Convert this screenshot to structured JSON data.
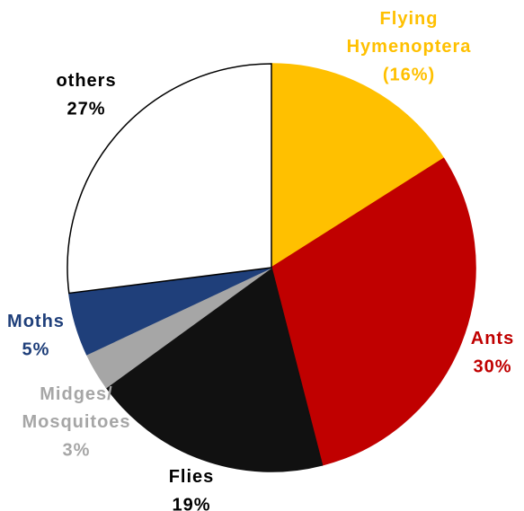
{
  "chart_data": {
    "type": "pie",
    "categories": [
      "Flying Hymenoptera",
      "Ants",
      "Flies",
      "Midges/ Mosquitoes",
      "Moths",
      "others"
    ],
    "values": [
      16,
      30,
      19,
      3,
      5,
      27
    ],
    "value_labels": [
      "(16%)",
      "30%",
      "19%",
      "3%",
      "5%",
      "27%"
    ],
    "colors": [
      "#FFC000",
      "#C00000",
      "#111111",
      "#A6A6A6",
      "#1F3F7A",
      "#FFFFFF"
    ],
    "label_colors": [
      "#FFC000",
      "#C00000",
      "#000000",
      "#A6A6A6",
      "#1F3F7A",
      "#000000"
    ]
  }
}
